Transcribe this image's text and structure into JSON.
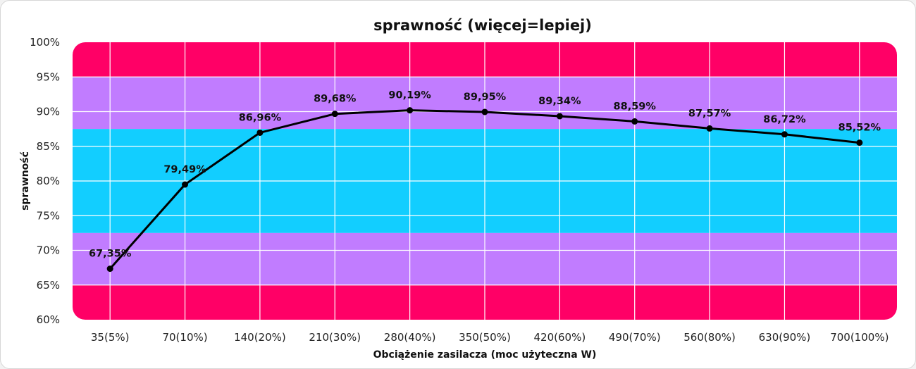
{
  "chart_data": {
    "type": "line",
    "title": "sprawność (więcej=lepiej)",
    "xlabel": "Obciążenie zasilacza (moc użyteczna W)",
    "ylabel": "sprawność",
    "ylim": [
      60,
      100
    ],
    "yticks": [
      60,
      65,
      70,
      75,
      80,
      85,
      90,
      95,
      100
    ],
    "ytick_labels": [
      "60%",
      "65%",
      "70%",
      "75%",
      "80%",
      "85%",
      "90%",
      "95%",
      "100%"
    ],
    "categories": [
      "35(5%)",
      "70(10%)",
      "140(20%)",
      "210(30%)",
      "280(40%)",
      "350(50%)",
      "420(60%)",
      "490(70%)",
      "560(80%)",
      "630(90%)",
      "700(100%)"
    ],
    "series": [
      {
        "values": [
          67.35,
          79.49,
          86.96,
          89.68,
          90.19,
          89.95,
          89.34,
          88.59,
          87.57,
          86.72,
          85.52
        ],
        "labels": [
          "67,35%",
          "79,49%",
          "86,96%",
          "89,68%",
          "90,19%",
          "89,95%",
          "89,34%",
          "88,59%",
          "87,57%",
          "86,72%",
          "85,52%"
        ],
        "color": "#000000"
      }
    ],
    "background_bands": [
      {
        "from": 95,
        "to": 100,
        "color": "#ff0066"
      },
      {
        "from": 87.5,
        "to": 95,
        "color": "#c17cff"
      },
      {
        "from": 72.5,
        "to": 87.5,
        "color": "#12ceff"
      },
      {
        "from": 65,
        "to": 72.5,
        "color": "#c17cff"
      },
      {
        "from": 60,
        "to": 65,
        "color": "#ff0066"
      }
    ],
    "grid": true,
    "legend": "none"
  }
}
